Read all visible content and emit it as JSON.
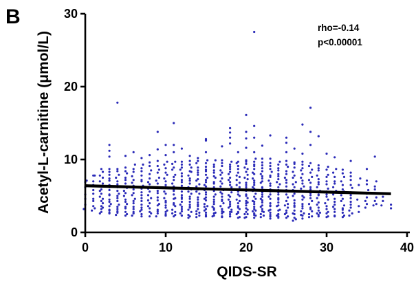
{
  "panel_label": "B",
  "chart_data": {
    "type": "scatter",
    "xlabel": "QIDS-SR",
    "ylabel": "Acetyl-L-carnitine (μmol/L)",
    "xlim": [
      0,
      40
    ],
    "ylim": [
      0,
      30
    ],
    "xticks": [
      0,
      10,
      20,
      30,
      40
    ],
    "yticks": [
      0,
      10,
      20,
      30
    ],
    "grid": false,
    "point_color": "#2b2bb8",
    "line_color": "#000000",
    "annotations": [
      "rho=-0.14",
      "p<0.00001"
    ],
    "regression": {
      "x": [
        0,
        38
      ],
      "y": [
        6.4,
        5.3
      ]
    },
    "distribution": {
      "x": [
        0,
        1,
        2,
        3,
        4,
        5,
        6,
        7,
        8,
        9,
        10,
        11,
        12,
        13,
        14,
        15,
        16,
        17,
        18,
        19,
        20,
        21,
        22,
        23,
        24,
        25,
        26,
        27,
        28,
        29,
        30,
        31,
        32,
        33,
        34,
        35,
        36,
        37,
        38
      ],
      "n": [
        6,
        10,
        18,
        18,
        18,
        18,
        18,
        18,
        18,
        18,
        20,
        22,
        22,
        24,
        24,
        26,
        24,
        24,
        26,
        26,
        28,
        28,
        26,
        24,
        24,
        22,
        22,
        22,
        20,
        20,
        18,
        16,
        16,
        14,
        6,
        8,
        8,
        3,
        2
      ],
      "low": [
        3.0,
        2.8,
        2.6,
        2.4,
        2.4,
        2.3,
        2.3,
        2.2,
        2.2,
        2.2,
        2.1,
        2.1,
        2.1,
        2.0,
        2.0,
        2.0,
        2.0,
        2.0,
        2.0,
        2.0,
        2.0,
        2.0,
        2.0,
        1.9,
        1.9,
        1.9,
        1.5,
        1.9,
        1.9,
        2.0,
        2.0,
        2.0,
        2.0,
        2.2,
        2.6,
        3.2,
        3.6,
        3.5,
        3.0
      ],
      "high": [
        7.5,
        8.0,
        8.5,
        9.0,
        9.0,
        9.2,
        9.4,
        9.6,
        9.8,
        10.0,
        10.0,
        10.0,
        10.0,
        10.0,
        10.0,
        10.0,
        10.0,
        10.0,
        10.0,
        10.0,
        10.2,
        10.2,
        10.2,
        10.2,
        10.0,
        10.0,
        10.0,
        10.0,
        9.8,
        9.5,
        9.2,
        9.0,
        8.8,
        8.5,
        8.0,
        7.5,
        7.2,
        5.2,
        4.0
      ]
    },
    "points_extra": [
      {
        "x": 0,
        "y": 6.9
      },
      {
        "x": 1,
        "y": 7.8
      },
      {
        "x": 2,
        "y": 8.7
      },
      {
        "x": 3,
        "y": 12.0
      },
      {
        "x": 3,
        "y": 11.2
      },
      {
        "x": 3,
        "y": 10.4
      },
      {
        "x": 4,
        "y": 17.8
      },
      {
        "x": 5,
        "y": 10.5
      },
      {
        "x": 6,
        "y": 11.0
      },
      {
        "x": 7,
        "y": 10.2
      },
      {
        "x": 8,
        "y": 10.6
      },
      {
        "x": 9,
        "y": 13.8
      },
      {
        "x": 9,
        "y": 11.4
      },
      {
        "x": 10,
        "y": 12.0
      },
      {
        "x": 10,
        "y": 10.6
      },
      {
        "x": 11,
        "y": 15.0
      },
      {
        "x": 11,
        "y": 12.0
      },
      {
        "x": 11,
        "y": 11.0
      },
      {
        "x": 12,
        "y": 11.5
      },
      {
        "x": 13,
        "y": 10.5
      },
      {
        "x": 14,
        "y": 10.2
      },
      {
        "x": 15,
        "y": 12.6
      },
      {
        "x": 15,
        "y": 12.8
      },
      {
        "x": 15,
        "y": 11.0
      },
      {
        "x": 17,
        "y": 11.8
      },
      {
        "x": 18,
        "y": 14.3
      },
      {
        "x": 18,
        "y": 13.7
      },
      {
        "x": 18,
        "y": 13.0
      },
      {
        "x": 18,
        "y": 12.2
      },
      {
        "x": 19,
        "y": 11.0
      },
      {
        "x": 20,
        "y": 16.1
      },
      {
        "x": 20,
        "y": 13.8
      },
      {
        "x": 20,
        "y": 12.9
      },
      {
        "x": 20,
        "y": 11.6
      },
      {
        "x": 21,
        "y": 27.5
      },
      {
        "x": 21,
        "y": 14.6
      },
      {
        "x": 21,
        "y": 13.0
      },
      {
        "x": 21,
        "y": 11.0
      },
      {
        "x": 22,
        "y": 11.9
      },
      {
        "x": 23,
        "y": 13.3
      },
      {
        "x": 25,
        "y": 13.0
      },
      {
        "x": 25,
        "y": 12.3
      },
      {
        "x": 25,
        "y": 11.0
      },
      {
        "x": 26,
        "y": 11.5
      },
      {
        "x": 27,
        "y": 14.8
      },
      {
        "x": 27,
        "y": 10.8
      },
      {
        "x": 28,
        "y": 17.1
      },
      {
        "x": 28,
        "y": 13.8
      },
      {
        "x": 28,
        "y": 12.0
      },
      {
        "x": 29,
        "y": 13.2
      },
      {
        "x": 30,
        "y": 10.8
      },
      {
        "x": 31,
        "y": 10.3
      },
      {
        "x": 33,
        "y": 9.8
      },
      {
        "x": 35,
        "y": 8.7
      },
      {
        "x": 36,
        "y": 10.4
      }
    ]
  }
}
